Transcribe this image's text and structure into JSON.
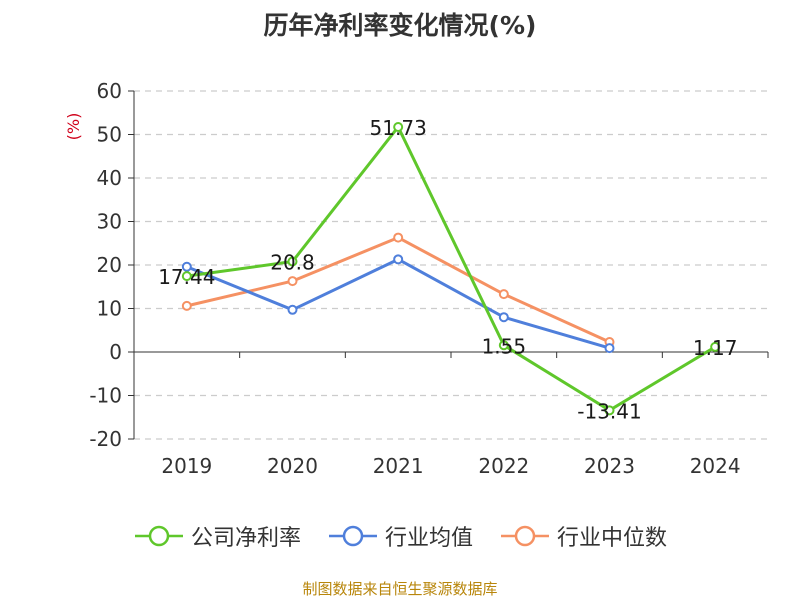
{
  "title": "历年净利率变化情况(%)",
  "source": "制图数据来自恒生聚源数据库",
  "colors": {
    "net_margin": "#5fc72b",
    "industry_avg": "#4f7fdb",
    "industry_median": "#f59163",
    "ylabel": "#d0021b",
    "axis": "#333333",
    "grid": "#cccccc"
  },
  "chart_data": {
    "type": "line",
    "ylabel": "(%)",
    "categories": [
      "2019",
      "2020",
      "2021",
      "2022",
      "2023",
      "2024"
    ],
    "ylim": [
      -20,
      60
    ],
    "yticks": [
      60,
      50,
      40,
      30,
      20,
      10,
      0,
      -10,
      -20
    ],
    "grid": true,
    "legend_position": "bottom",
    "series": [
      {
        "name": "公司净利率",
        "color_key": "net_margin",
        "values": [
          17.44,
          20.8,
          51.73,
          1.55,
          -13.41,
          1.17
        ],
        "labels": [
          "17.44",
          "20.8",
          "51.73",
          "1.55",
          "-13.41",
          "1.17"
        ]
      },
      {
        "name": "行业均值",
        "color_key": "industry_avg",
        "values": [
          19.6,
          9.7,
          21.3,
          8.0,
          0.9,
          null
        ]
      },
      {
        "name": "行业中位数",
        "color_key": "industry_median",
        "values": [
          10.6,
          16.3,
          26.3,
          13.3,
          2.3,
          null
        ]
      }
    ]
  }
}
